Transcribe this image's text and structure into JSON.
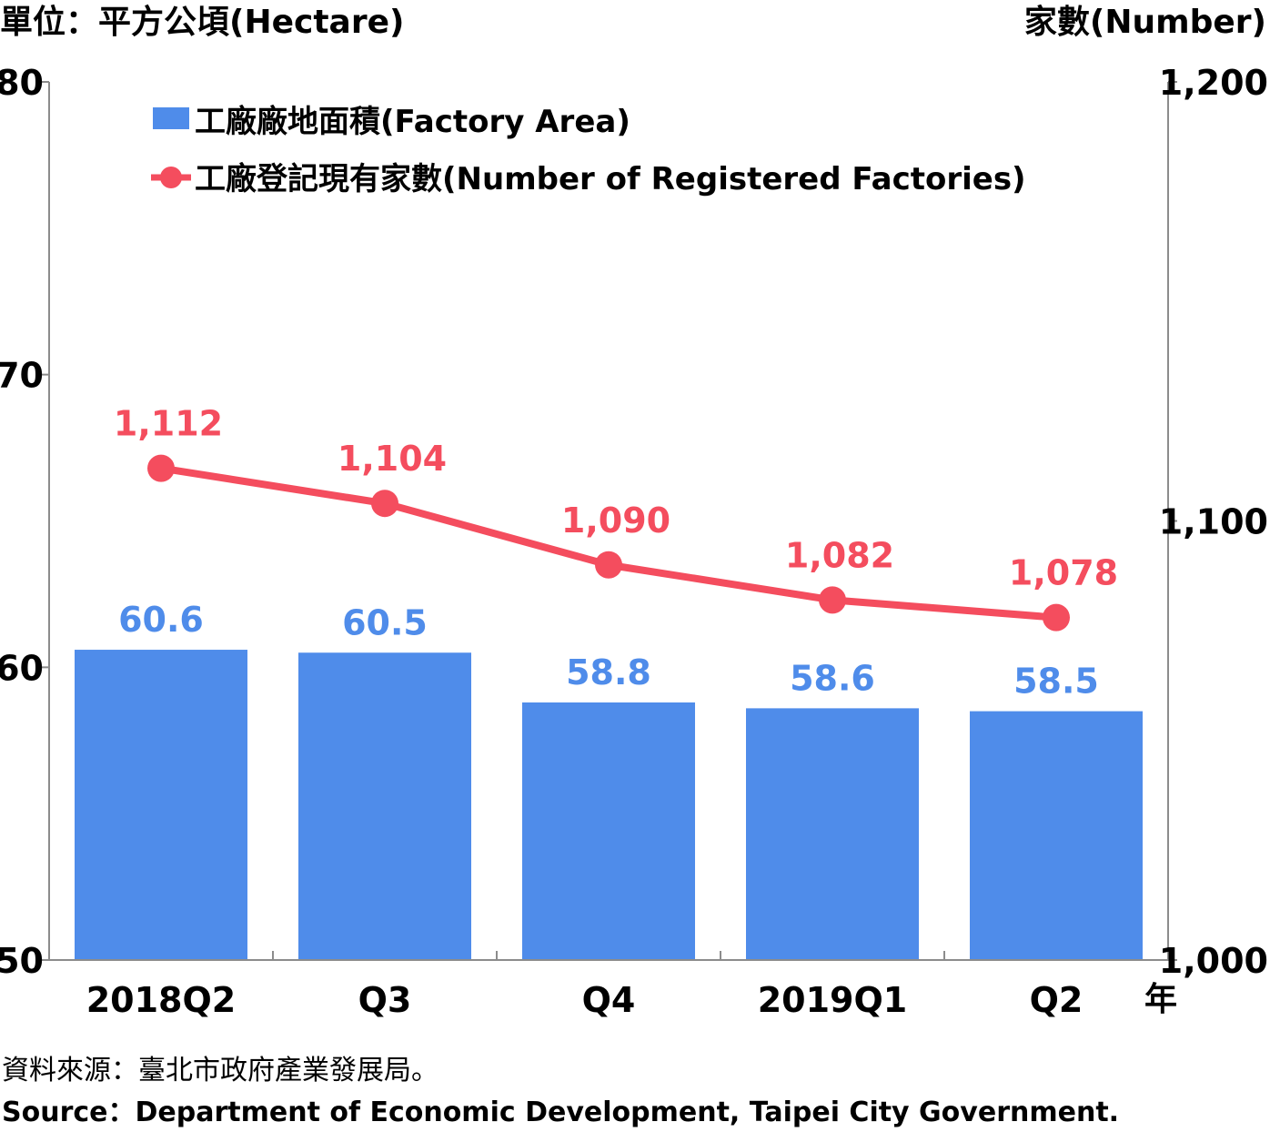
{
  "chart_data": {
    "type": "bar",
    "y_left_label": "單位：平方公頃(Hectare)",
    "y_right_label": "家數(Number)",
    "x_axis_unit": "年",
    "categories": [
      "2018Q2",
      "Q3",
      "Q4",
      "2019Q1",
      "Q2"
    ],
    "ylim_left": [
      50,
      80
    ],
    "yticks_left": [
      "50",
      "60",
      "70",
      "80"
    ],
    "ylim_right": [
      1000,
      1200
    ],
    "yticks_right": [
      "1,000",
      "1,100",
      "1,200"
    ],
    "legend_position": "top-left",
    "series": [
      {
        "name": "工廠廠地面積(Factory Area)",
        "type": "bar",
        "axis": "left",
        "color": "#4f8cea",
        "values": [
          60.6,
          60.5,
          58.8,
          58.6,
          58.5
        ],
        "labels": [
          "60.6",
          "60.5",
          "58.8",
          "58.6",
          "58.5"
        ]
      },
      {
        "name": "工廠登記現有家數(Number of Registered Factories)",
        "type": "line",
        "axis": "right",
        "color": "#f44d5e",
        "values": [
          1112,
          1104,
          1090,
          1082,
          1078
        ],
        "labels": [
          "1,112",
          "1,104",
          "1,090",
          "1,082",
          "1,078"
        ]
      }
    ]
  },
  "source": {
    "zh": "資料來源：臺北市政府產業發展局。",
    "en": "Source：Department of Economic Development, Taipei City Government."
  }
}
